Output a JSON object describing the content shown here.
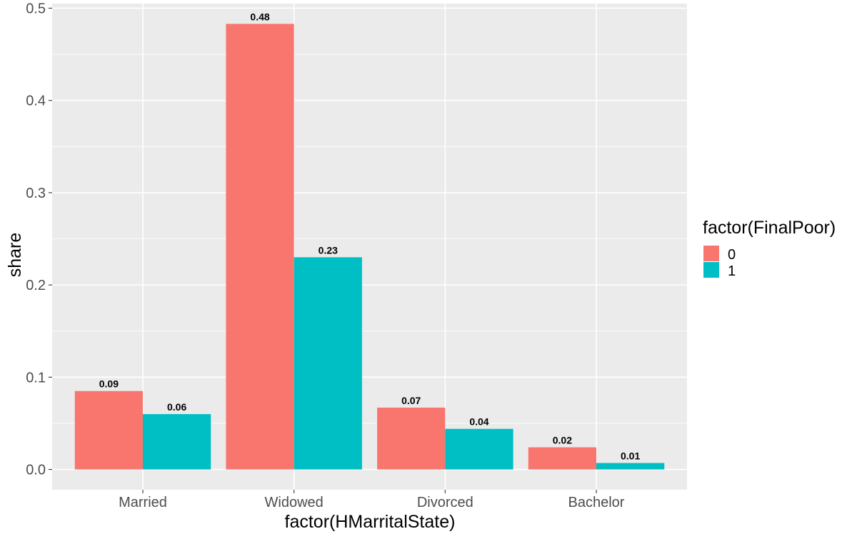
{
  "chart_data": {
    "type": "bar",
    "categories": [
      "Married",
      "Widowed",
      "Divorced",
      "Bachelor"
    ],
    "series": [
      {
        "name": "0",
        "values": [
          0.085,
          0.483,
          0.067,
          0.024
        ],
        "labels": [
          "0.09",
          "0.48",
          "0.07",
          "0.02"
        ]
      },
      {
        "name": "1",
        "values": [
          0.06,
          0.23,
          0.044,
          0.007
        ],
        "labels": [
          "0.06",
          "0.23",
          "0.04",
          "0.01"
        ]
      }
    ],
    "xlabel": "factor(HMarritalState)",
    "ylabel": "share",
    "ylim": [
      -0.022,
      0.505
    ],
    "yticks": [
      0.0,
      0.1,
      0.2,
      0.3,
      0.4,
      0.5
    ],
    "ytick_labels": [
      "0.0",
      "0.1",
      "0.2",
      "0.3",
      "0.4",
      "0.5"
    ],
    "legend": {
      "title": "factor(FinalPoor)",
      "position": "right"
    },
    "grid": true,
    "colors": {
      "series0": "#F8766D",
      "series1": "#00BFC4",
      "panel": "#EBEBEB",
      "grid": "#FFFFFF",
      "axis_text": "#4D4D4D"
    }
  }
}
